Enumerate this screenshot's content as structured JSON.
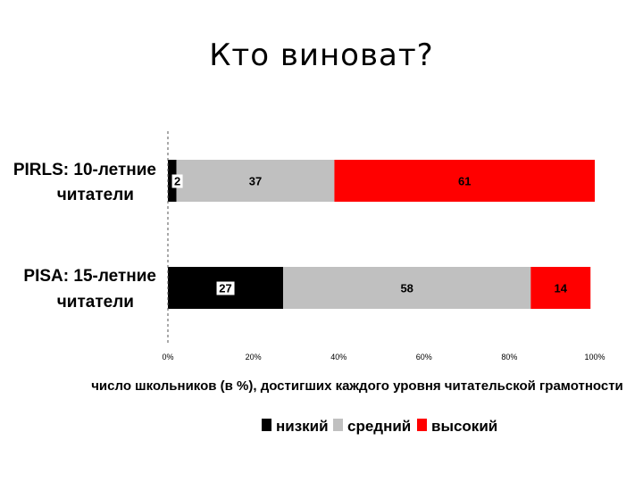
{
  "slide": {
    "title": "Кто виноват?"
  },
  "chart_data": {
    "type": "bar",
    "orientation": "horizontal",
    "stacked": true,
    "normalized": true,
    "categories": [
      {
        "bold": "PIRLS:",
        "rest": " 10-летние",
        "line2": "читатели"
      },
      {
        "bold": "PISA:",
        "rest": " 15-летние",
        "line2": "читатели"
      }
    ],
    "series": [
      {
        "name": "низкий",
        "color": "#000000",
        "label_color": "#000000",
        "label_bg": "#ffffff",
        "values": [
          2,
          27
        ]
      },
      {
        "name": "средний",
        "color": "#c0c0c0",
        "label_color": "#000000",
        "label_bg": "",
        "values": [
          37,
          58
        ]
      },
      {
        "name": "высокий",
        "color": "#ff0000",
        "label_color": "#000000",
        "label_bg": "",
        "values": [
          61,
          14
        ]
      }
    ],
    "xlim": [
      0,
      100
    ],
    "xticks": [
      "0%",
      "20%",
      "40%",
      "60%",
      "80%",
      "100%"
    ],
    "xlabel": "число школьников (в %), достигших каждого уровня читательской грамотности",
    "legend_position": "bottom",
    "grid": false
  }
}
